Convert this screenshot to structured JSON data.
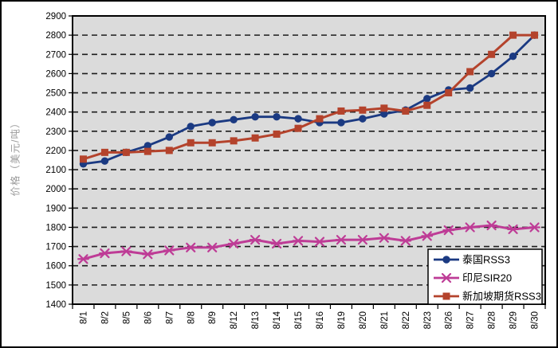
{
  "chart_data": {
    "type": "line",
    "ylabel": "价格（美元/吨）",
    "ylim": [
      1400,
      2900
    ],
    "y_tick_step": 100,
    "grid": "horizontal-dashed",
    "legend_position": "inside-bottom-right",
    "plot_background": "#DBDBDB",
    "gridline_color": "#1c1c1c",
    "axis_color": "#000000",
    "categories": [
      "8/1",
      "8/2",
      "8/5",
      "8/6",
      "8/7",
      "8/8",
      "8/9",
      "8/12",
      "8/13",
      "8/14",
      "8/15",
      "8/16",
      "8/19",
      "8/20",
      "8/21",
      "8/22",
      "8/23",
      "8/26",
      "8/27",
      "8/28",
      "8/29",
      "8/30"
    ],
    "series": [
      {
        "id": "thailand-rss3",
        "name": "泰国RSS3",
        "color": "#1B3A82",
        "marker": "circle",
        "values": [
          2130,
          2145,
          2190,
          2225,
          2270,
          2325,
          2345,
          2360,
          2375,
          2375,
          2365,
          2345,
          2345,
          2365,
          2390,
          2410,
          2470,
          2515,
          2525,
          2600,
          2690,
          2800
        ]
      },
      {
        "id": "indonesia-sir20",
        "name": "印尼SIR20",
        "color": "#BE3C96",
        "marker": "asterisk",
        "values": [
          1635,
          1665,
          1675,
          1660,
          1680,
          1695,
          1695,
          1715,
          1735,
          1715,
          1730,
          1725,
          1735,
          1735,
          1745,
          1730,
          1755,
          1785,
          1800,
          1810,
          1790,
          1800
        ]
      },
      {
        "id": "singapore-futures-rss3",
        "name": "新加坡期货RSS3",
        "color": "#B4432C",
        "marker": "square",
        "values": [
          2155,
          2190,
          2190,
          2195,
          2200,
          2240,
          2240,
          2250,
          2265,
          2285,
          2315,
          2365,
          2405,
          2410,
          2420,
          2405,
          2435,
          2500,
          2610,
          2700,
          2800,
          2800
        ]
      }
    ]
  }
}
